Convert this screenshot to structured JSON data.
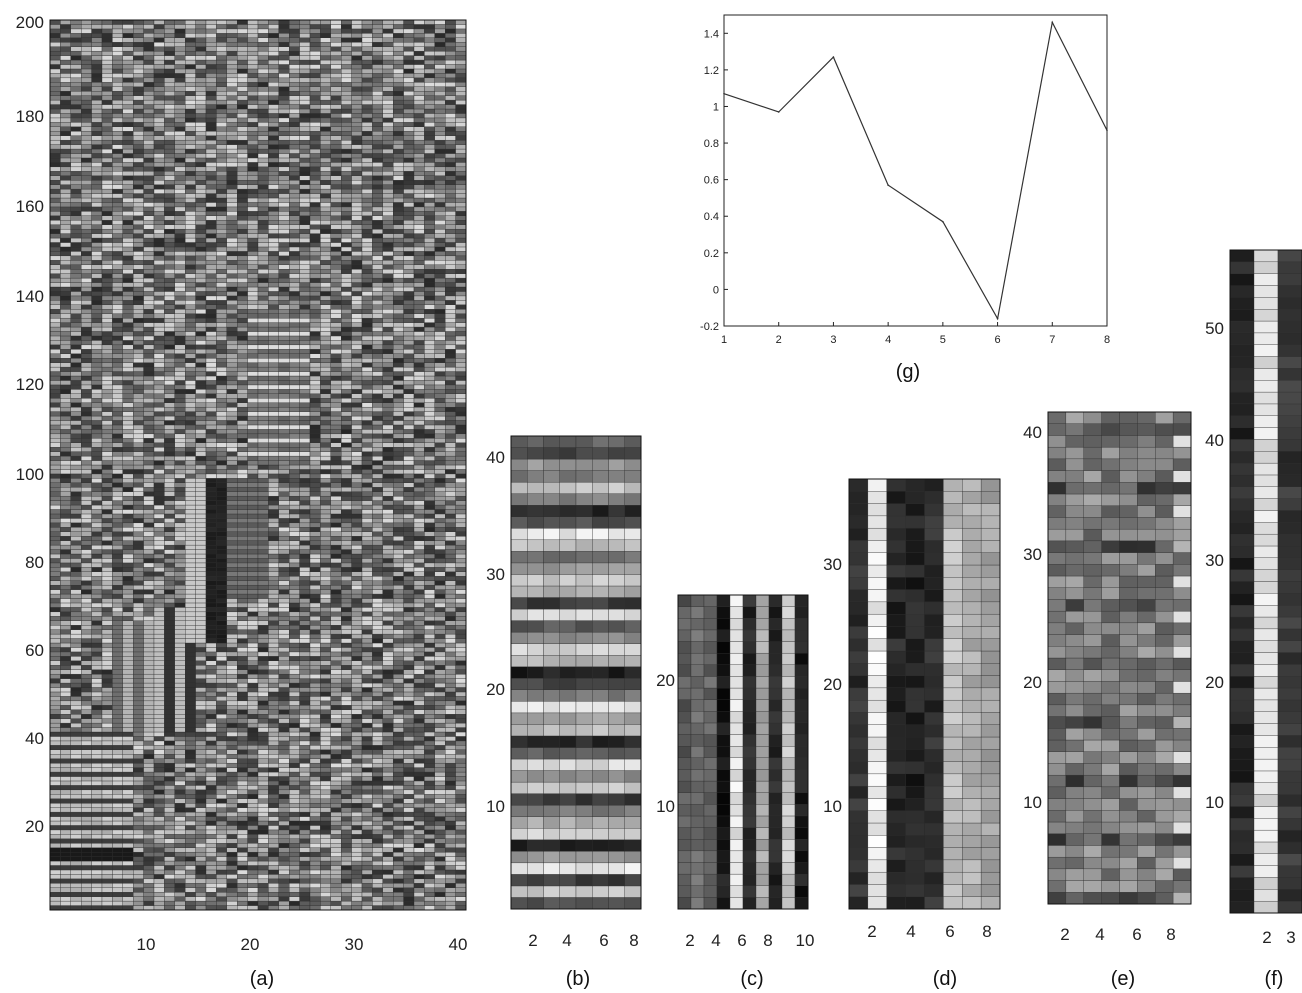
{
  "chart_data": [
    {
      "type": "heatmap",
      "caption": "(a)",
      "cols": 40,
      "rows": 200,
      "x_ticks": [
        "10",
        "20",
        "30",
        "40"
      ],
      "y_ticks": [
        "20",
        "40",
        "60",
        "80",
        "100",
        "120",
        "140",
        "160",
        "180",
        "200"
      ]
    },
    {
      "type": "heatmap",
      "caption": "(b)",
      "cols": 8,
      "rows": 41,
      "x_ticks": [
        "2",
        "4",
        "6",
        "8"
      ],
      "y_ticks": [
        "10",
        "20",
        "30",
        "40"
      ]
    },
    {
      "type": "heatmap",
      "caption": "(c)",
      "cols": 10,
      "rows": 27,
      "x_ticks": [
        "2",
        "4",
        "6",
        "8",
        "10"
      ],
      "y_ticks": [
        "10",
        "20"
      ]
    },
    {
      "type": "heatmap",
      "caption": "(d)",
      "cols": 8,
      "rows": 35,
      "x_ticks": [
        "2",
        "4",
        "6",
        "8"
      ],
      "y_ticks": [
        "10",
        "20",
        "30"
      ]
    },
    {
      "type": "heatmap",
      "caption": "(e)",
      "cols": 8,
      "rows": 42,
      "x_ticks": [
        "2",
        "4",
        "6",
        "8"
      ],
      "y_ticks": [
        "10",
        "20",
        "30",
        "40"
      ]
    },
    {
      "type": "heatmap",
      "caption": "(f)",
      "cols": 3,
      "rows": 56,
      "x_ticks": [
        "2",
        "3"
      ],
      "y_ticks": [
        "10",
        "20",
        "30",
        "40",
        "50"
      ]
    },
    {
      "type": "line",
      "caption": "(g)",
      "x": [
        1,
        2,
        3,
        4,
        5,
        6,
        7,
        8
      ],
      "y": [
        1.07,
        0.97,
        1.27,
        0.57,
        0.37,
        -0.16,
        1.46,
        0.87
      ],
      "xlim": [
        1,
        8
      ],
      "ylim": [
        -0.2,
        1.5
      ],
      "x_ticks": [
        "1",
        "2",
        "3",
        "4",
        "5",
        "6",
        "7",
        "8"
      ],
      "y_ticks": [
        "-0.2",
        "0",
        "0.2",
        "0.4",
        "0.6",
        "0.8",
        "1",
        "1.2",
        "1.4"
      ]
    }
  ]
}
